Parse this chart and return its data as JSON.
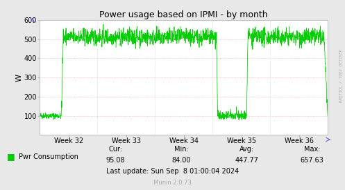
{
  "title": "Power usage based on IPMI - by month",
  "ylabel": "W",
  "bg_color": "#e8e8e8",
  "plot_bg_color": "#ffffff",
  "line_color": "#00cc00",
  "grid_color_h": "#ff9999",
  "grid_color_v": "#cccccc",
  "ylim": [
    0,
    600
  ],
  "yticks": [
    100,
    200,
    300,
    400,
    500,
    600
  ],
  "week_labels": [
    "Week 32",
    "Week 33",
    "Week 34",
    "Week 35",
    "Week 36"
  ],
  "legend_label": "Pwr Consumption",
  "cur_label": "Cur:",
  "min_label": "Min:",
  "avg_label": "Avg:",
  "max_label": "Max:",
  "cur": "95.08",
  "min": "84.00",
  "avg": "447.77",
  "max": "657.63",
  "last_update": "Last update: Sun Sep  8 01:00:04 2024",
  "munin_version": "Munin 2.0.73",
  "watermark": "RRDTOOL / TOBI OETIKER",
  "n_points": 1500
}
